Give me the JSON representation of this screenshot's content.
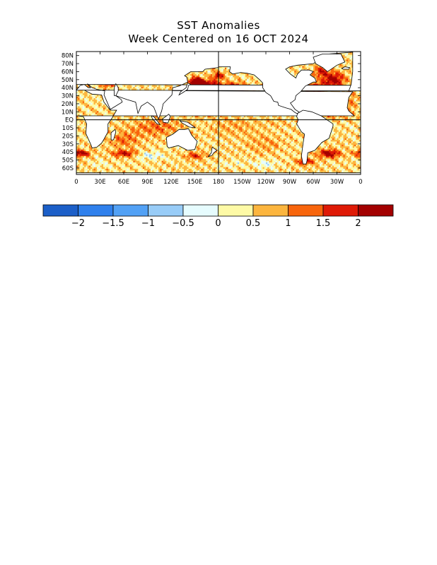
{
  "title": "SST Anomalies",
  "subtitle": "Week Centered on 16 OCT 2024",
  "map": {
    "lon_range": [
      0,
      360
    ],
    "lat_range": [
      -68,
      85
    ],
    "lat_ticks": [
      "80N",
      "70N",
      "60N",
      "50N",
      "40N",
      "30N",
      "20N",
      "10N",
      "EQ",
      "10S",
      "20S",
      "30S",
      "40S",
      "50S",
      "60S"
    ],
    "lon_ticks": [
      "0",
      "30E",
      "60E",
      "90E",
      "120E",
      "150E",
      "180",
      "150W",
      "120W",
      "90W",
      "60W",
      "30W",
      "0"
    ],
    "equator_line": true,
    "dateline": true
  },
  "colorbar": {
    "labels": [
      "−2",
      "−1.5",
      "−1",
      "−0.5",
      "0",
      "0.5",
      "1",
      "1.5",
      "2"
    ],
    "colors": [
      "#1c5fc8",
      "#2f80ec",
      "#52a1f5",
      "#98ccf7",
      "#e6fcfe",
      "#fefaa6",
      "#fcb53e",
      "#f8650c",
      "#df1a06",
      "#a30000"
    ],
    "bins": [
      -2.5,
      -2,
      -1.5,
      -1,
      -0.5,
      0,
      0.5,
      1,
      1.5,
      2,
      2.5
    ]
  }
}
